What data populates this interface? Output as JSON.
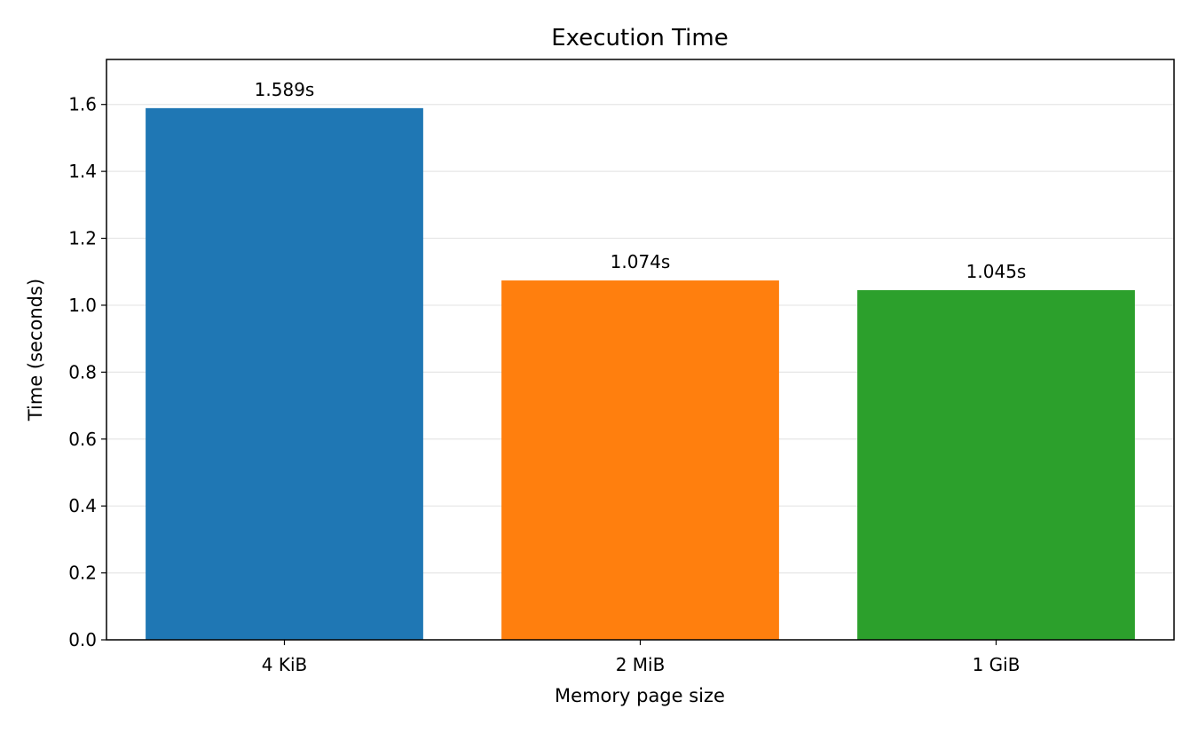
{
  "chart_data": {
    "type": "bar",
    "title": "Execution Time",
    "xlabel": "Memory page size",
    "ylabel": "Time (seconds)",
    "categories": [
      "4 KiB",
      "2 MiB",
      "1 GiB"
    ],
    "values": [
      1.589,
      1.074,
      1.045
    ],
    "value_labels": [
      "1.589s",
      "1.074s",
      "1.045s"
    ],
    "colors": [
      "#1f77b4",
      "#ff7f0e",
      "#2ca02c"
    ],
    "ylim": [
      0,
      1.7345
    ],
    "yticks": [
      0.0,
      0.2,
      0.4,
      0.6,
      0.8,
      1.0,
      1.2,
      1.4,
      1.6
    ],
    "ytick_labels": [
      "0.0",
      "0.2",
      "0.4",
      "0.6",
      "0.8",
      "1.0",
      "1.2",
      "1.4",
      "1.6"
    ],
    "grid": "y",
    "legend": "none"
  }
}
